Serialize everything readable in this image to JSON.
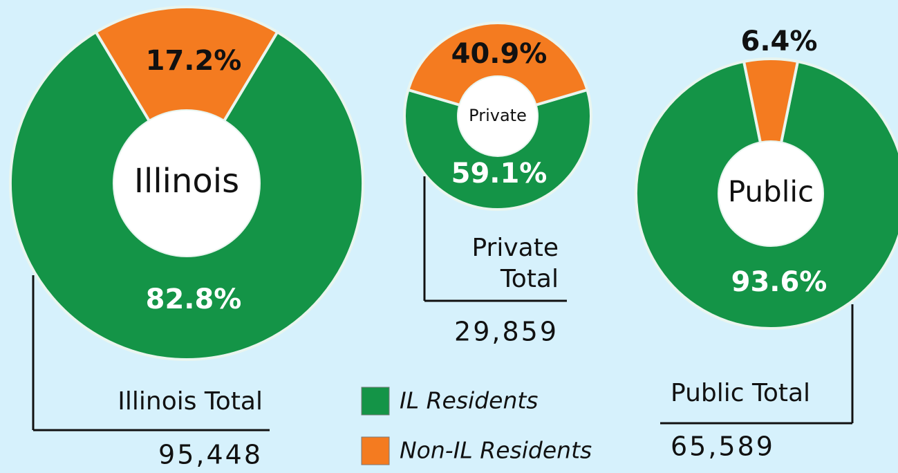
{
  "chart_data": [
    {
      "type": "pie",
      "center_label": "Illinois",
      "values": [
        82.8,
        17.2
      ],
      "value_labels": [
        "82.8%",
        "17.2%"
      ],
      "total_label": "Illinois Total",
      "total": "95,448"
    },
    {
      "type": "pie",
      "center_label": "Private",
      "values": [
        59.1,
        40.9
      ],
      "value_labels": [
        "59.1%",
        "40.9%"
      ],
      "total_label": "Private Total",
      "total": "29,859"
    },
    {
      "type": "pie",
      "center_label": "Public",
      "values": [
        93.6,
        6.4
      ],
      "value_labels": [
        "93.6%",
        "6.4%"
      ],
      "total_label": "Public Total",
      "total": "65,589"
    }
  ],
  "legend": {
    "names": [
      "IL Residents",
      "Non-IL Residents"
    ],
    "colors": [
      "#149447",
      "#f47b20"
    ]
  }
}
